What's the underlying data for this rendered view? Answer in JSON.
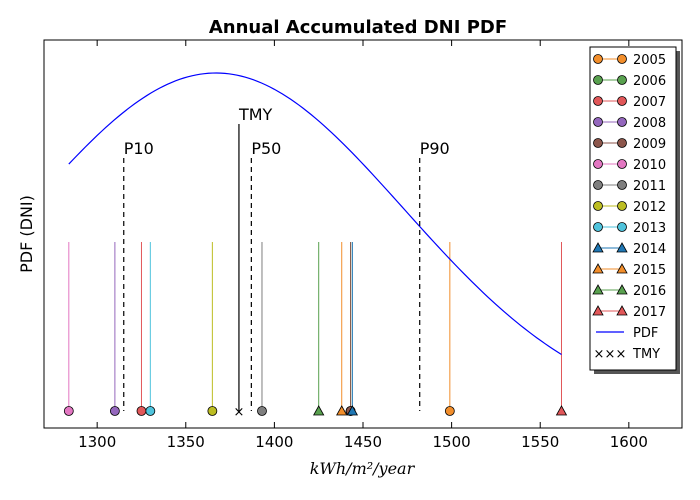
{
  "chart_data": {
    "type": "line",
    "title": "Annual Accumulated DNI PDF",
    "xlabel": "kWh/m²/year",
    "ylabel": "PDF (DNI)",
    "xlim": [
      1270,
      1630
    ],
    "xticks": [
      1300,
      1350,
      1400,
      1450,
      1500,
      1550,
      1600
    ],
    "legend_position": "top-right",
    "years": [
      {
        "name": "2005",
        "value": 1499,
        "color": "#f28e2b",
        "marker": "circle"
      },
      {
        "name": "2006",
        "value": 1443,
        "color": "#59a14f",
        "marker": "circle"
      },
      {
        "name": "2007",
        "value": 1325,
        "color": "#e15759",
        "marker": "circle"
      },
      {
        "name": "2008",
        "value": 1310,
        "color": "#9467bd",
        "marker": "circle"
      },
      {
        "name": "2009",
        "value": 1443,
        "color": "#8c564b",
        "marker": "circle"
      },
      {
        "name": "2010",
        "value": 1284,
        "color": "#e377c2",
        "marker": "circle"
      },
      {
        "name": "2011",
        "value": 1393,
        "color": "#7f7f7f",
        "marker": "circle"
      },
      {
        "name": "2012",
        "value": 1365,
        "color": "#bcbd22",
        "marker": "circle"
      },
      {
        "name": "2013",
        "value": 1330,
        "color": "#4fc3dc",
        "marker": "circle"
      },
      {
        "name": "2014",
        "value": 1444,
        "color": "#1f77b4",
        "marker": "triangle"
      },
      {
        "name": "2015",
        "value": 1438,
        "color": "#f28e2b",
        "marker": "triangle"
      },
      {
        "name": "2016",
        "value": 1425,
        "color": "#59a14f",
        "marker": "triangle"
      },
      {
        "name": "2017",
        "value": 1562,
        "color": "#e15759",
        "marker": "triangle"
      }
    ],
    "pdf": {
      "name": "PDF",
      "color": "#0000ff",
      "x_range": [
        1284,
        1562
      ],
      "mean": 1367,
      "std": 106,
      "peak_y": 1.0
    },
    "tmy": {
      "name": "TMY",
      "value": 1380,
      "label": "TMY",
      "symbol": "×"
    },
    "percentiles": [
      {
        "label": "P10",
        "value": 1315
      },
      {
        "label": "P50",
        "value": 1387
      },
      {
        "label": "P90",
        "value": 1482
      }
    ]
  }
}
